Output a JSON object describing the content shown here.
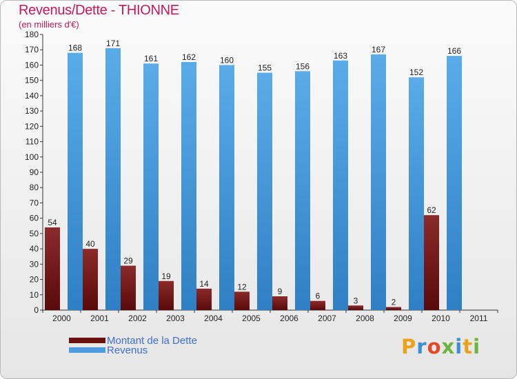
{
  "header": {
    "title": "Revenus/Dette - THIONNE",
    "unit": "(en milliers d'€)"
  },
  "legend": {
    "items": [
      {
        "label": "Montant de la Dette",
        "color": "#6b0f0f"
      },
      {
        "label": "Revenus",
        "color": "#4c9de0"
      }
    ]
  },
  "logo": {
    "text": "Proxiti"
  },
  "colors": {
    "debt_top": "#8b2a2a",
    "debt_bottom": "#5a0a0a",
    "revenue_top": "#5aace8",
    "revenue_bottom": "#2f7fc4"
  },
  "chart_data": {
    "type": "bar",
    "title": "Revenus/Dette - THIONNE",
    "ylabel": "(en milliers d'€)",
    "xlabel": "",
    "categories": [
      "2000",
      "2001",
      "2002",
      "2003",
      "2004",
      "2005",
      "2006",
      "2007",
      "2008",
      "2009",
      "2010",
      "2011"
    ],
    "series": [
      {
        "name": "Montant de la Dette",
        "values": [
          54,
          40,
          29,
          19,
          14,
          12,
          9,
          6,
          3,
          2,
          62,
          null
        ]
      },
      {
        "name": "Revenus",
        "values": [
          168,
          171,
          161,
          162,
          160,
          155,
          156,
          163,
          167,
          152,
          166,
          null
        ]
      }
    ],
    "ylim": [
      0,
      180
    ],
    "yticks": [
      0,
      10,
      20,
      30,
      40,
      50,
      60,
      70,
      80,
      90,
      100,
      110,
      120,
      130,
      140,
      150,
      160,
      170,
      180
    ],
    "grid": false,
    "legend_position": "bottom-left"
  }
}
